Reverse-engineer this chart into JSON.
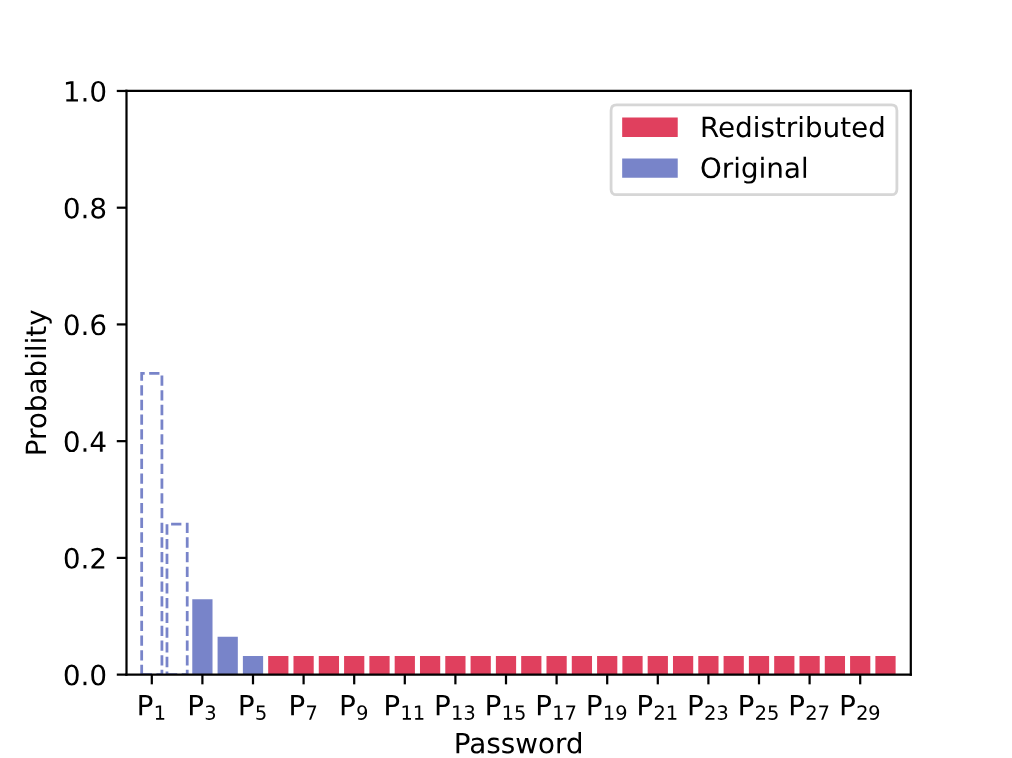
{
  "chart_data": {
    "type": "bar",
    "xlabel": "Password",
    "ylabel": "Probability",
    "categories": [
      "P$_{1}$",
      null,
      "P$_{3}$",
      null,
      "P$_{5}$",
      null,
      "P$_{7}$",
      null,
      "P$_{9}$",
      null,
      "P$_{11}$",
      null,
      "P$_{13}$",
      null,
      "P$_{15}$",
      null,
      "P$_{17}$",
      null,
      "P$_{19}$",
      null,
      "P$_{21}$",
      null,
      "P$_{23}$",
      null,
      "P$_{25}$",
      null,
      "P$_{27}$",
      null,
      "P$_{29}$",
      null
    ],
    "series": [
      {
        "name": "Redistributed",
        "color": "#e0405e",
        "values": [
          null,
          null,
          null,
          null,
          null,
          0.032,
          0.032,
          0.032,
          0.032,
          0.032,
          0.032,
          0.032,
          0.032,
          0.032,
          0.032,
          0.032,
          0.032,
          0.032,
          0.032,
          0.032,
          0.032,
          0.032,
          0.032,
          0.032,
          0.032,
          0.032,
          0.032,
          0.032,
          0.032,
          0.032
        ]
      },
      {
        "name": "Original",
        "color": "#7884c9",
        "values": [
          null,
          null,
          0.129,
          0.065,
          0.032,
          null,
          null,
          null,
          null,
          null,
          null,
          null,
          null,
          null,
          null,
          null,
          null,
          null,
          null,
          null,
          null,
          null,
          null,
          null,
          null,
          null,
          null,
          null,
          null,
          null
        ]
      },
      {
        "color": "#7884c9",
        "line_style": "dashed",
        "values": [
          0.516,
          0.258,
          null,
          null,
          null,
          null,
          null,
          null,
          null,
          null,
          null,
          null,
          null,
          null,
          null,
          null,
          null,
          null,
          null,
          null,
          null,
          null,
          null,
          null,
          null,
          null,
          null,
          null,
          null,
          null
        ]
      }
    ],
    "ylim": [
      0,
      1.0
    ],
    "yticks": [
      {
        "value": 0,
        "label": "0.0"
      },
      {
        "value": 0.2,
        "label": "0.2"
      },
      {
        "value": 0.4,
        "label": "0.4"
      },
      {
        "value": 0.6,
        "label": "0.6"
      },
      {
        "value": 0.8,
        "label": "0.8"
      },
      {
        "value": 1.0,
        "label": "1.0"
      }
    ],
    "legend": "top right",
    "grid": false
  }
}
